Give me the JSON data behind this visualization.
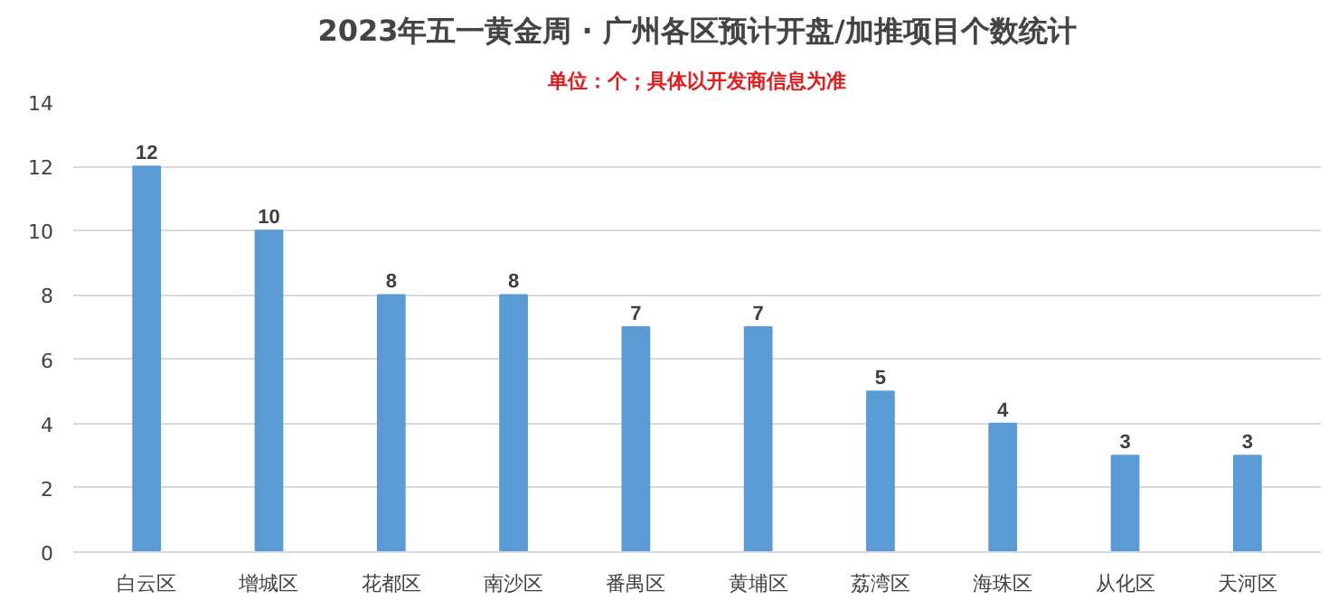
{
  "chart_data": {
    "type": "bar",
    "title": "2023年五一黄金周 · 广州各区预计开盘/加推项目个数统计",
    "subtitle": "单位：个；具体以开发商信息为准",
    "categories": [
      "白云区",
      "增城区",
      "花都区",
      "南沙区",
      "番禺区",
      "黄埔区",
      "荔湾区",
      "海珠区",
      "从化区",
      "天河区"
    ],
    "values": [
      12,
      10,
      8,
      8,
      7,
      7,
      5,
      4,
      3,
      3
    ],
    "color": "#5b9bd5",
    "ylim": [
      0,
      14
    ],
    "yticks": [
      0,
      2,
      4,
      6,
      8,
      10,
      12,
      14
    ],
    "grid": "y",
    "data_labels": true
  }
}
